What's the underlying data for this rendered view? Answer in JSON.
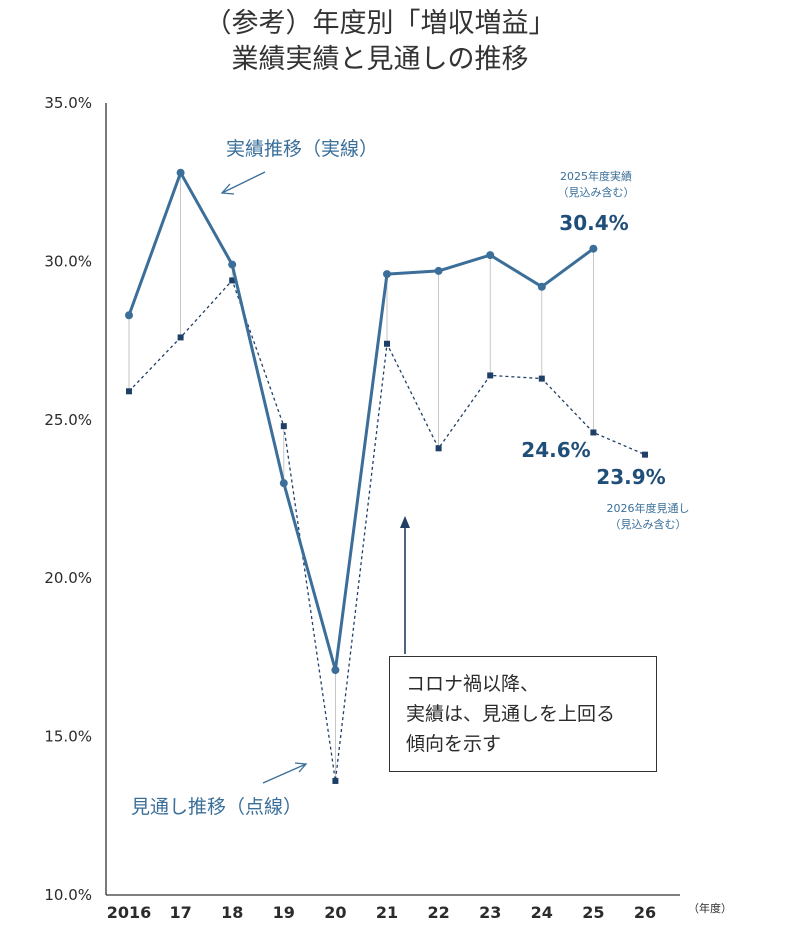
{
  "title_lines": [
    "（参考）年度別「増収増益」",
    "業績実績と見通しの推移"
  ],
  "chart_data": {
    "type": "line",
    "title": "（参考）年度別「増収増益」業績実績と見通しの推移",
    "xlabel": "（年度）",
    "ylabel": "",
    "ylim": [
      10.0,
      35.0
    ],
    "yticks": [
      "35.0%",
      "30.0%",
      "25.0%",
      "20.0%",
      "15.0%",
      "10.0%"
    ],
    "categories": [
      "2016",
      "17",
      "18",
      "19",
      "20",
      "21",
      "22",
      "23",
      "24",
      "25",
      "26"
    ],
    "series": [
      {
        "name": "実績推移（実線）",
        "style": "solid",
        "color": "#3b6e99",
        "values": [
          28.3,
          32.8,
          29.9,
          23.0,
          17.1,
          29.6,
          29.7,
          30.2,
          29.2,
          30.4,
          null
        ]
      },
      {
        "name": "見通し推移（点線）",
        "style": "dotted",
        "color": "#1f3f66",
        "values": [
          25.9,
          27.6,
          29.4,
          24.8,
          13.6,
          27.4,
          24.1,
          26.4,
          26.3,
          24.6,
          23.9
        ]
      }
    ],
    "grid": false
  },
  "annotations": {
    "actual_series_label": "実績推移（実線）",
    "forecast_series_label": "見通し推移（点線）",
    "actual_2025_title": "2025年度実績",
    "actual_2025_sub": "（見込み含む）",
    "actual_2025_value": "30.4%",
    "forecast_2025_value": "24.6%",
    "forecast_2026_value": "23.9%",
    "forecast_2026_title": "2026年度見通し",
    "forecast_2026_sub": "（見込み含む）"
  },
  "note": {
    "lines": [
      "コロナ禍以降、",
      "実績は、見通しを上回る",
      "傾向を示す"
    ]
  },
  "colors": {
    "actual_line": "#3b6e99",
    "forecast_line": "#1f3f66",
    "annotation_text": "#3a6f9a",
    "value_text": "#1f4e79"
  }
}
